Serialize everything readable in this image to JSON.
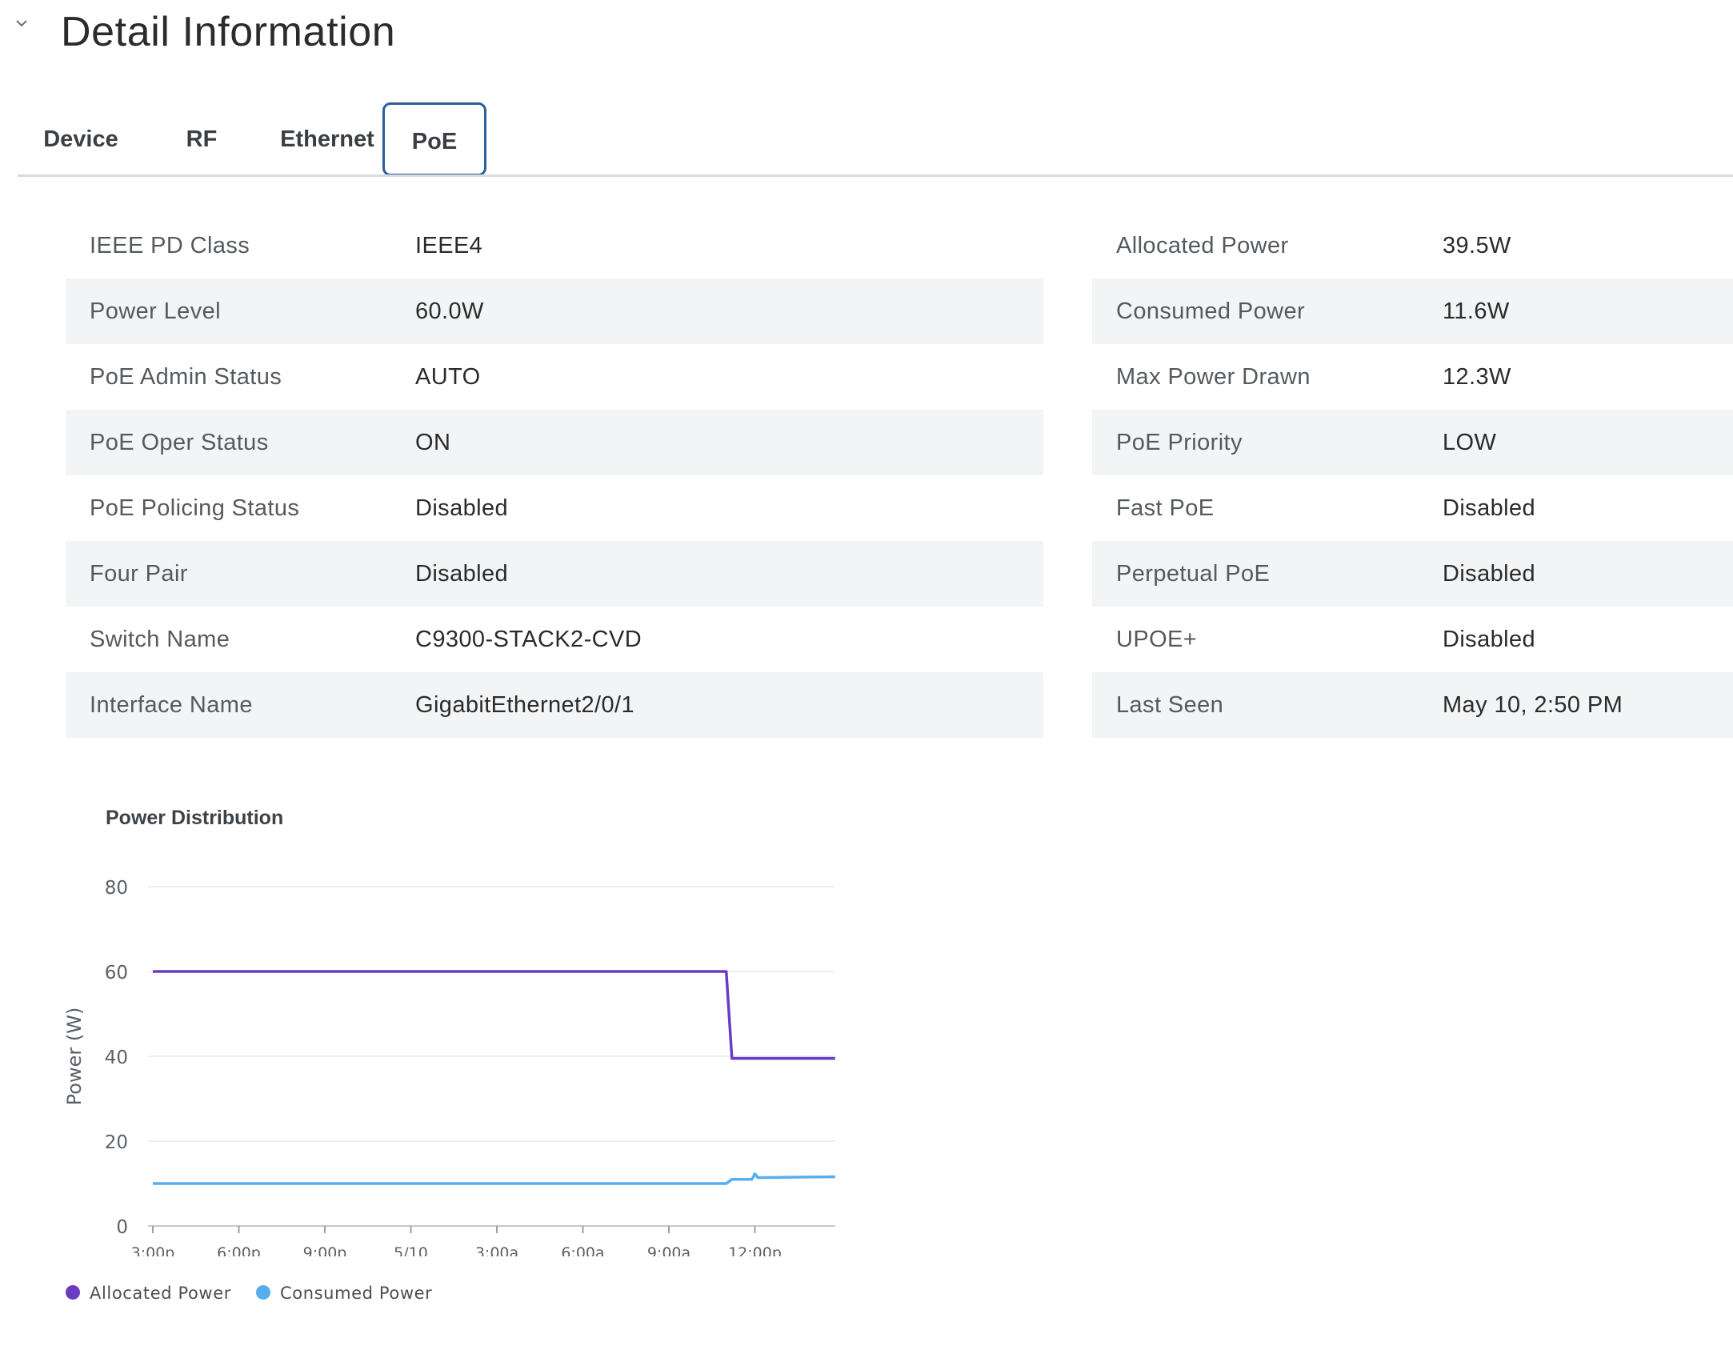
{
  "section": {
    "title": "Detail Information"
  },
  "tabs": [
    {
      "label": "Device",
      "active": false
    },
    {
      "label": "RF",
      "active": false
    },
    {
      "label": "Ethernet",
      "active": false
    },
    {
      "label": "PoE",
      "active": true
    }
  ],
  "left_table": [
    {
      "key": "IEEE PD Class",
      "value": "IEEE4"
    },
    {
      "key": "Power Level",
      "value": "60.0W"
    },
    {
      "key": "PoE Admin Status",
      "value": "AUTO"
    },
    {
      "key": "PoE Oper Status",
      "value": "ON"
    },
    {
      "key": "PoE Policing Status",
      "value": "Disabled"
    },
    {
      "key": "Four Pair",
      "value": "Disabled"
    },
    {
      "key": "Switch Name",
      "value": "C9300-STACK2-CVD"
    },
    {
      "key": "Interface Name",
      "value": "GigabitEthernet2/0/1"
    }
  ],
  "right_table": [
    {
      "key": "Allocated Power",
      "value": "39.5W"
    },
    {
      "key": "Consumed Power",
      "value": "11.6W"
    },
    {
      "key": "Max Power Drawn",
      "value": "12.3W"
    },
    {
      "key": "PoE Priority",
      "value": "LOW"
    },
    {
      "key": "Fast PoE",
      "value": "Disabled"
    },
    {
      "key": "Perpetual PoE",
      "value": "Disabled"
    },
    {
      "key": "UPOE+",
      "value": "Disabled"
    },
    {
      "key": "Last Seen",
      "value": "May 10, 2:50 PM"
    }
  ],
  "chart_data": {
    "type": "line",
    "title": "Power Distribution",
    "xlabel": "",
    "ylabel": "Power (W)",
    "x_tick_labels": [
      "3:00p",
      "6:00p",
      "9:00p",
      "5/10",
      "3:00a",
      "6:00a",
      "9:00a",
      "12:00p"
    ],
    "x_range_hours": [
      0,
      24
    ],
    "ylim": [
      0,
      80
    ],
    "y_ticks": [
      0,
      20,
      40,
      60,
      80
    ],
    "grid": true,
    "legend_position": "bottom-left",
    "series": [
      {
        "name": "Allocated Power",
        "color": "#6a3cc4",
        "points": [
          [
            0,
            60
          ],
          [
            20.0,
            60
          ],
          [
            20.2,
            39.5
          ],
          [
            23.8,
            39.5
          ]
        ]
      },
      {
        "name": "Consumed Power",
        "color": "#57aeef",
        "points": [
          [
            0,
            10
          ],
          [
            20.0,
            10
          ],
          [
            20.2,
            11
          ],
          [
            20.9,
            11
          ],
          [
            21.0,
            12.3
          ],
          [
            21.1,
            11.4
          ],
          [
            23.8,
            11.6
          ]
        ]
      }
    ]
  }
}
